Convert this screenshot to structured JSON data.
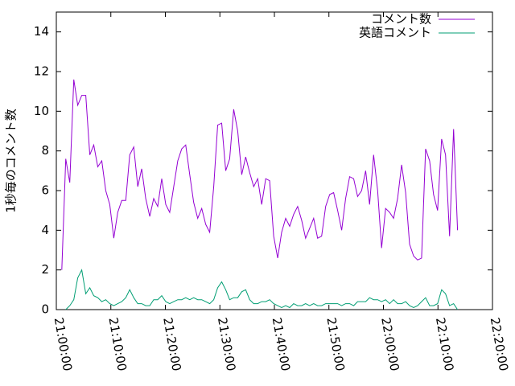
{
  "chart_data": {
    "type": "line",
    "y_label": "1秒毎のコメント数",
    "x": [
      "21:01:00",
      "21:01:44",
      "21:02:28",
      "21:03:12",
      "21:03:56",
      "21:04:40",
      "21:05:24",
      "21:06:08",
      "21:06:52",
      "21:07:36",
      "21:08:20",
      "21:09:04",
      "21:09:48",
      "21:10:32",
      "21:11:16",
      "21:12:00",
      "21:12:44",
      "21:13:28",
      "21:14:12",
      "21:14:56",
      "21:15:40",
      "21:16:24",
      "21:17:08",
      "21:17:52",
      "21:18:36",
      "21:19:20",
      "21:20:04",
      "21:20:48",
      "21:21:32",
      "21:22:16",
      "21:23:00",
      "21:23:44",
      "21:24:28",
      "21:25:12",
      "21:25:56",
      "21:26:40",
      "21:27:24",
      "21:28:08",
      "21:28:52",
      "21:29:36",
      "21:30:20",
      "21:31:04",
      "21:31:48",
      "21:32:32",
      "21:33:16",
      "21:34:00",
      "21:34:44",
      "21:35:28",
      "21:36:12",
      "21:36:56",
      "21:37:40",
      "21:38:24",
      "21:39:08",
      "21:39:52",
      "21:40:36",
      "21:41:20",
      "21:42:04",
      "21:42:48",
      "21:43:32",
      "21:44:16",
      "21:45:00",
      "21:45:44",
      "21:46:28",
      "21:47:12",
      "21:47:56",
      "21:48:40",
      "21:49:24",
      "21:50:08",
      "21:50:52",
      "21:51:36",
      "21:52:20",
      "21:53:04",
      "21:53:48",
      "21:54:32",
      "21:55:16",
      "21:56:00",
      "21:56:44",
      "21:57:28",
      "21:58:12",
      "21:58:56",
      "21:59:40",
      "22:00:24",
      "22:01:08",
      "22:01:52",
      "22:02:36",
      "22:03:20",
      "22:04:04",
      "22:04:48",
      "22:05:32",
      "22:06:16",
      "22:07:00",
      "22:07:44",
      "22:08:28",
      "22:09:12",
      "22:09:56",
      "22:10:40",
      "22:11:24",
      "22:12:08",
      "22:12:52",
      "22:13:36"
    ],
    "series": [
      {
        "name": "コメント数",
        "color": "#9400d3",
        "values": [
          2,
          7.6,
          6.4,
          11.6,
          10.3,
          10.8,
          10.8,
          7.8,
          8.3,
          7.2,
          7.5,
          6.0,
          5.3,
          3.6,
          4.9,
          5.5,
          5.5,
          7.8,
          8.2,
          6.2,
          7.1,
          5.6,
          4.7,
          5.6,
          5.2,
          6.6,
          5.3,
          4.9,
          6.2,
          7.5,
          8.1,
          8.3,
          6.8,
          5.4,
          4.6,
          5.1,
          4.3,
          3.9,
          6.2,
          9.3,
          9.4,
          7.0,
          7.6,
          10.1,
          9.0,
          6.8,
          7.7,
          6.9,
          6.2,
          6.6,
          5.3,
          6.6,
          6.5,
          3.7,
          2.6,
          3.9,
          4.6,
          4.2,
          4.8,
          5.2,
          4.5,
          3.6,
          4.1,
          4.6,
          3.6,
          3.7,
          5.2,
          5.8,
          5.9,
          5.0,
          4.0,
          5.6,
          6.7,
          6.6,
          5.7,
          6.0,
          7.0,
          5.3,
          7.8,
          6.0,
          3.1,
          5.1,
          4.9,
          4.6,
          5.6,
          7.3,
          5.9,
          3.3,
          2.7,
          2.5,
          2.6,
          8.1,
          7.5,
          5.8,
          5.0,
          8.6,
          7.8,
          3.7,
          9.1,
          4.0
        ]
      },
      {
        "name": "英語コメント",
        "color": "#009e73",
        "values": [
          null,
          0,
          0.2,
          0.5,
          1.6,
          2.0,
          0.8,
          1.1,
          0.7,
          0.6,
          0.4,
          0.5,
          0.3,
          0.2,
          0.3,
          0.4,
          0.6,
          1.0,
          0.6,
          0.3,
          0.3,
          0.2,
          0.2,
          0.5,
          0.5,
          0.7,
          0.4,
          0.3,
          0.4,
          0.5,
          0.5,
          0.6,
          0.5,
          0.6,
          0.5,
          0.5,
          0.4,
          0.3,
          0.5,
          1.1,
          1.4,
          1.0,
          0.5,
          0.6,
          0.6,
          0.9,
          1.0,
          0.5,
          0.3,
          0.3,
          0.4,
          0.4,
          0.5,
          0.3,
          0.2,
          0.1,
          0.2,
          0.1,
          0.3,
          0.2,
          0.2,
          0.3,
          0.2,
          0.3,
          0.2,
          0.2,
          0.3,
          0.3,
          0.3,
          0.3,
          0.2,
          0.3,
          0.3,
          0.2,
          0.4,
          0.4,
          0.4,
          0.6,
          0.5,
          0.5,
          0.4,
          0.5,
          0.3,
          0.5,
          0.3,
          0.3,
          0.4,
          0.2,
          0.1,
          0.2,
          0.4,
          0.6,
          0.2,
          0.2,
          0.3,
          1.0,
          0.8,
          0.2,
          0.3,
          0
        ]
      }
    ],
    "xlim": [
      "21:00:00",
      "22:20:00"
    ],
    "xticks": [
      "21:00:00",
      "21:10:00",
      "21:20:00",
      "21:30:00",
      "21:40:00",
      "21:50:00",
      "22:00:00",
      "22:10:00",
      "22:20:00"
    ],
    "ylim": [
      0,
      15
    ],
    "yticks": [
      0,
      2,
      4,
      6,
      8,
      10,
      12,
      14
    ],
    "legend": "top-right"
  }
}
